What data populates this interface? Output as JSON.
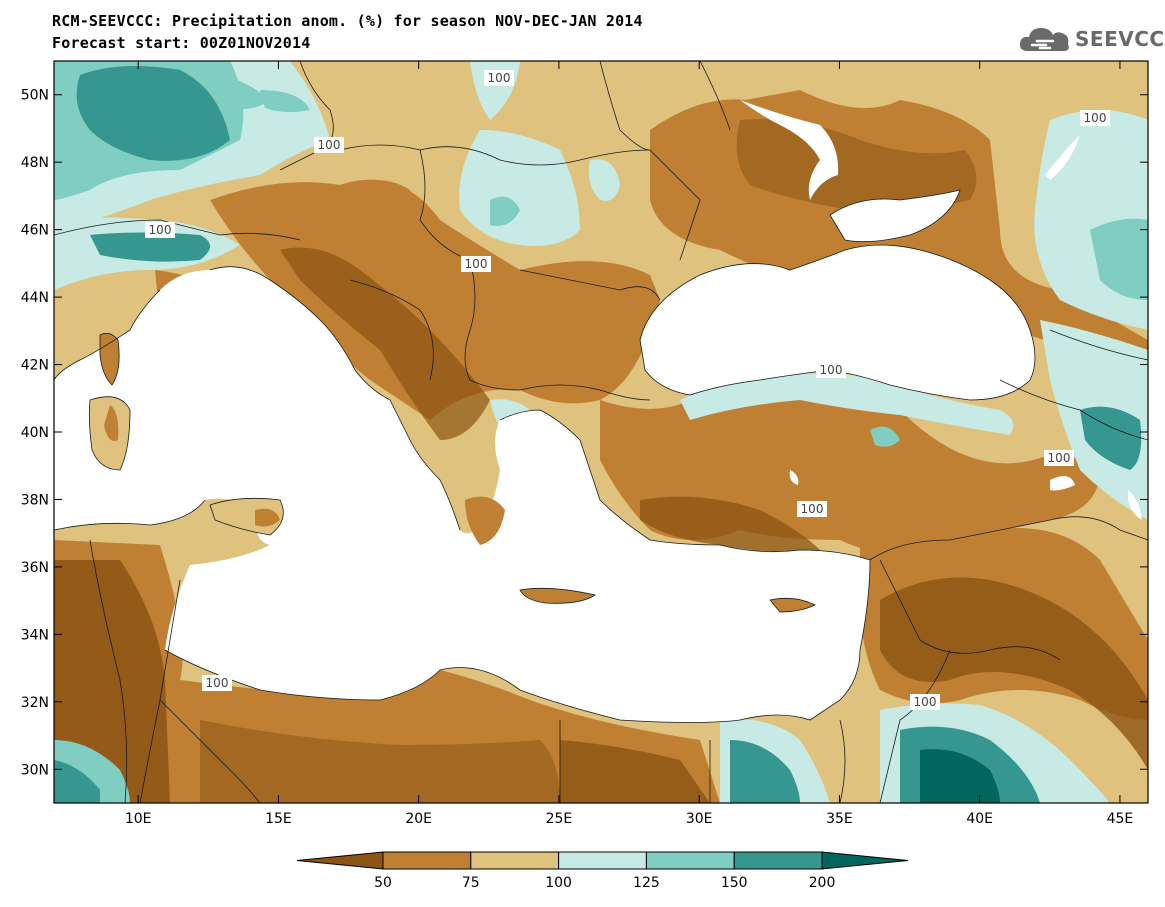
{
  "header": {
    "title_line1": "RCM-SEEVCCC: Precipitation anom. (%) for season NOV-DEC-JAN 2014",
    "title_line2": "Forecast start: 00Z01NOV2014",
    "logo_text": "SEEVCCC",
    "logo_icon": "cloud-icon"
  },
  "map": {
    "projection": "lat-lon",
    "lon_range": [
      7,
      46
    ],
    "lat_range": [
      29,
      51
    ],
    "lat_ticks": [
      "50N",
      "48N",
      "46N",
      "44N",
      "42N",
      "40N",
      "38N",
      "36N",
      "34N",
      "32N",
      "30N"
    ],
    "lon_ticks": [
      "10E",
      "15E",
      "20E",
      "25E",
      "30E",
      "35E",
      "40E",
      "45E"
    ],
    "contour_label": "100",
    "sea_color": "#ffffff",
    "border_color": "#1a1a1a"
  },
  "colorbar": {
    "levels": [
      "50",
      "75",
      "100",
      "125",
      "150",
      "200"
    ],
    "colors": [
      "#8c5413",
      "#bf8033",
      "#dfc27d",
      "#c7eae5",
      "#80cdc1",
      "#35978f",
      "#01665e"
    ]
  }
}
